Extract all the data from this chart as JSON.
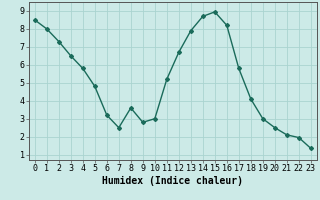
{
  "x": [
    0,
    1,
    2,
    3,
    4,
    5,
    6,
    7,
    8,
    9,
    10,
    11,
    12,
    13,
    14,
    15,
    16,
    17,
    18,
    19,
    20,
    21,
    22,
    23
  ],
  "y": [
    8.5,
    8.0,
    7.3,
    6.5,
    5.8,
    4.8,
    3.2,
    2.5,
    3.6,
    2.8,
    3.0,
    5.2,
    6.7,
    7.9,
    8.7,
    8.95,
    8.2,
    5.8,
    4.1,
    3.0,
    2.5,
    2.1,
    1.95,
    1.35
  ],
  "line_color": "#1a6b5a",
  "bg_color": "#cceae7",
  "grid_color": "#aad4d0",
  "xlabel": "Humidex (Indice chaleur)",
  "xlim": [
    -0.5,
    23.5
  ],
  "ylim": [
    0.7,
    9.5
  ],
  "yticks": [
    1,
    2,
    3,
    4,
    5,
    6,
    7,
    8,
    9
  ],
  "xticks": [
    0,
    1,
    2,
    3,
    4,
    5,
    6,
    7,
    8,
    9,
    10,
    11,
    12,
    13,
    14,
    15,
    16,
    17,
    18,
    19,
    20,
    21,
    22,
    23
  ],
  "label_fontsize": 7,
  "tick_fontsize": 6,
  "marker": "D",
  "marker_size": 2.0,
  "line_width": 1.0
}
